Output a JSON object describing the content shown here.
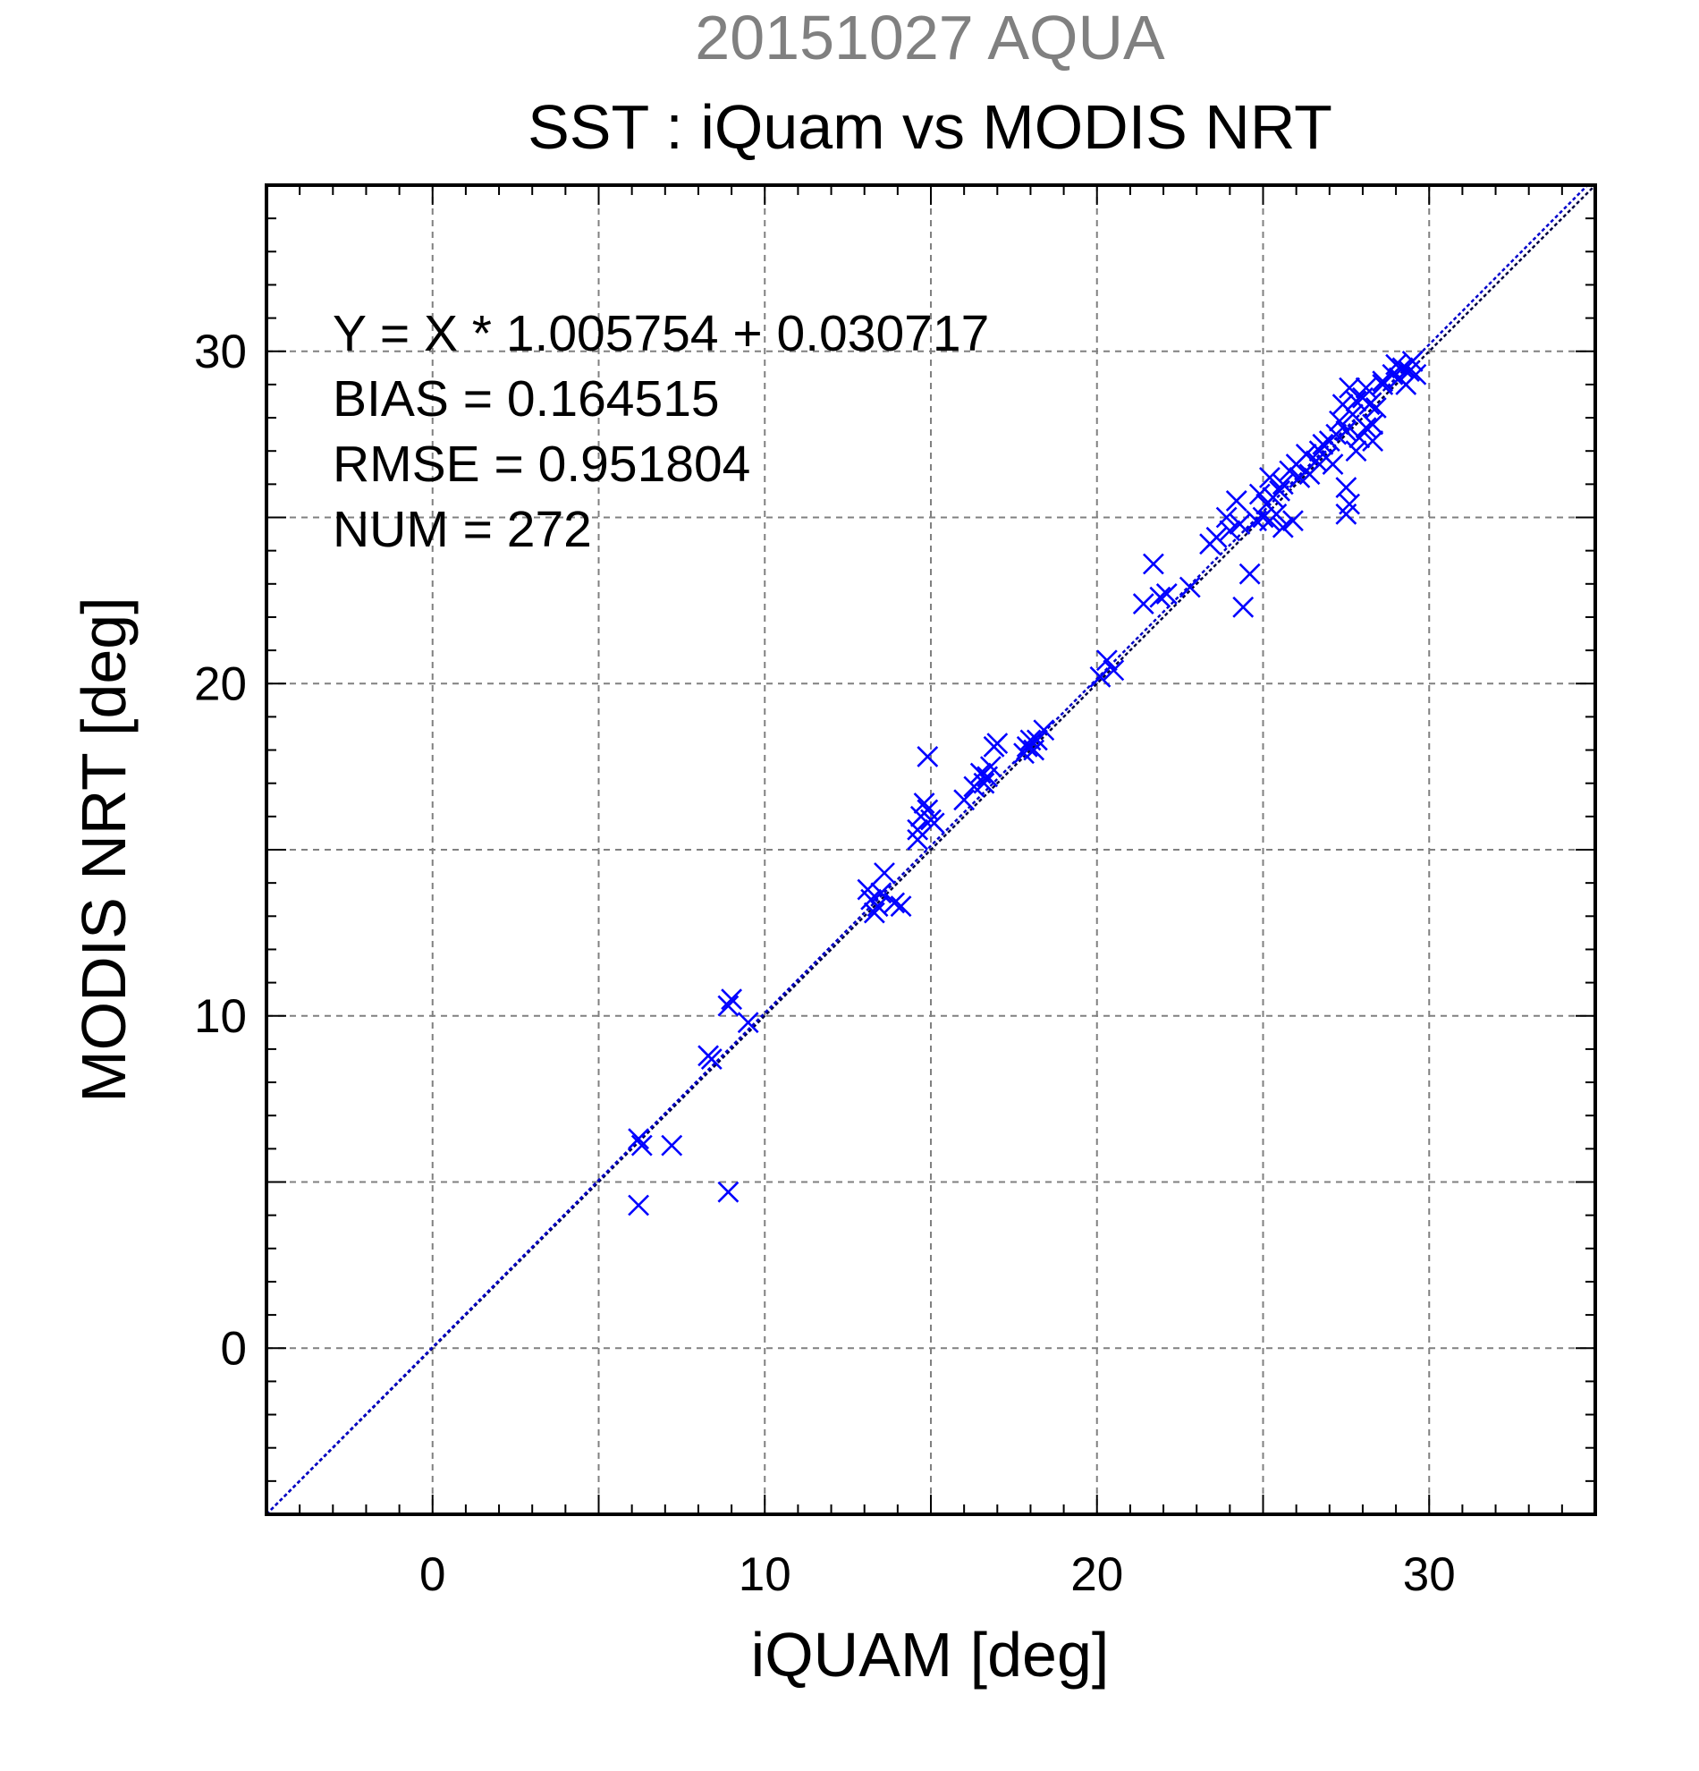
{
  "chart_data": {
    "type": "scatter",
    "title": "SST : iQuam vs MODIS NRT",
    "subtitle": "20151027 AQUA",
    "xlabel": "iQUAM [deg]",
    "ylabel": "MODIS NRT [deg]",
    "xlim": [
      -5,
      35
    ],
    "ylim": [
      -5,
      35
    ],
    "xticks": [
      "0",
      "10",
      "20",
      "30"
    ],
    "yticks": [
      "0",
      "10",
      "20",
      "30"
    ],
    "grid": true,
    "marker": "x",
    "stats": [
      "Y = X * 1.005754 + 0.030717",
      "BIAS = 0.164515",
      "RMSE = 0.951804",
      "NUM = 272"
    ],
    "fit": {
      "slope": 1.005754,
      "intercept": 0.030717
    },
    "colors": {
      "points": "#0000ff",
      "fit_line": "#0000cc",
      "identity_line": "#000040",
      "grid": "#808080",
      "subtitle": "#808080"
    },
    "series": [
      {
        "x": [
          6.2,
          6.3,
          6.2,
          7.2,
          8.3,
          8.4,
          8.9,
          9.0,
          8.9,
          9.5,
          13.1,
          13.2,
          13.4,
          13.3,
          13.5,
          13.6,
          13.9,
          14.1,
          14.6,
          14.7,
          14.9,
          15.0,
          14.8,
          14.6,
          15.1,
          14.9,
          16.0,
          16.3,
          16.5,
          16.7,
          16.8,
          16.9,
          17.0,
          16.6,
          17.8,
          17.9,
          18.0,
          18.1,
          18.2,
          18.4,
          20.1,
          20.3,
          20.5,
          21.4,
          21.7,
          21.9,
          22.1,
          22.8,
          23.4,
          23.6,
          23.9,
          24.0,
          24.2,
          24.3,
          24.4,
          24.6,
          24.8,
          25.0,
          25.1,
          25.2,
          25.3,
          25.4,
          25.5,
          25.6,
          25.8,
          26.0,
          26.1,
          26.3,
          26.4,
          24.9,
          25.2,
          25.6,
          25.9,
          26.6,
          26.7,
          26.8,
          26.9,
          27.0,
          27.1,
          27.2,
          27.3,
          27.4,
          27.5,
          27.5,
          27.6,
          27.7,
          27.8,
          27.9,
          28.0,
          28.1,
          28.2,
          28.3,
          28.4,
          28.6,
          27.6,
          27.8,
          27.5,
          28.1,
          28.3,
          28.6,
          28.9,
          29.0,
          29.1,
          29.2,
          29.3,
          29.4,
          29.5,
          29.6
        ],
        "y": [
          6.3,
          6.1,
          4.3,
          6.1,
          8.8,
          8.7,
          10.3,
          10.5,
          4.7,
          9.8,
          13.8,
          13.5,
          13.3,
          13.1,
          13.7,
          14.3,
          13.4,
          13.3,
          15.3,
          16.0,
          16.2,
          15.9,
          16.4,
          15.6,
          15.8,
          17.8,
          16.5,
          16.9,
          17.3,
          17.2,
          17.5,
          18.1,
          18.2,
          17.0,
          17.9,
          18.1,
          18.3,
          18.0,
          18.3,
          18.6,
          20.2,
          20.7,
          20.4,
          22.4,
          23.6,
          22.6,
          22.7,
          22.9,
          24.2,
          24.4,
          25.0,
          24.6,
          25.5,
          24.8,
          22.3,
          23.3,
          24.9,
          25.0,
          25.4,
          26.2,
          25.6,
          25.1,
          25.8,
          26.0,
          26.4,
          26.6,
          26.2,
          26.9,
          26.3,
          25.7,
          24.9,
          24.7,
          24.9,
          26.7,
          27.0,
          27.2,
          26.8,
          27.3,
          26.6,
          27.5,
          27.9,
          28.4,
          27.6,
          25.9,
          28.9,
          28.1,
          28.5,
          27.4,
          28.6,
          28.9,
          28.4,
          27.8,
          28.3,
          29.0,
          25.4,
          27.0,
          25.1,
          27.7,
          27.3,
          29.1,
          29.3,
          29.6,
          29.2,
          29.5,
          29.0,
          29.4,
          29.7,
          29.3
        ]
      }
    ]
  }
}
